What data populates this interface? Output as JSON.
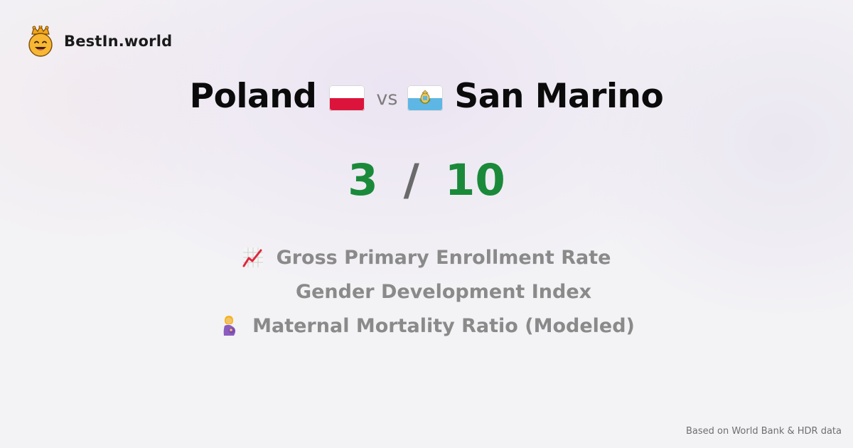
{
  "brand": {
    "name": "BestIn.world",
    "logo_icon": "crowned-smiley-icon"
  },
  "comparison": {
    "country_a": {
      "name": "Poland",
      "flag_icon": "poland-flag-icon",
      "score": "3"
    },
    "vs_label": "vs",
    "country_b": {
      "name": "San Marino",
      "flag_icon": "san-marino-flag-icon",
      "score": "10"
    },
    "separator": "/"
  },
  "metrics": [
    {
      "label": "Gross Primary Enrollment Rate",
      "icon": "chart-increasing-icon"
    },
    {
      "label": "Gender Development Index",
      "icon": ""
    },
    {
      "label": "Maternal Mortality Ratio (Modeled)",
      "icon": "pregnant-woman-icon"
    }
  ],
  "footer": {
    "text": "Based on World Bank & HDR data"
  },
  "colors": {
    "score": "#1a8a3a",
    "muted": "#8a8a8a",
    "title": "#0b0b0b"
  }
}
